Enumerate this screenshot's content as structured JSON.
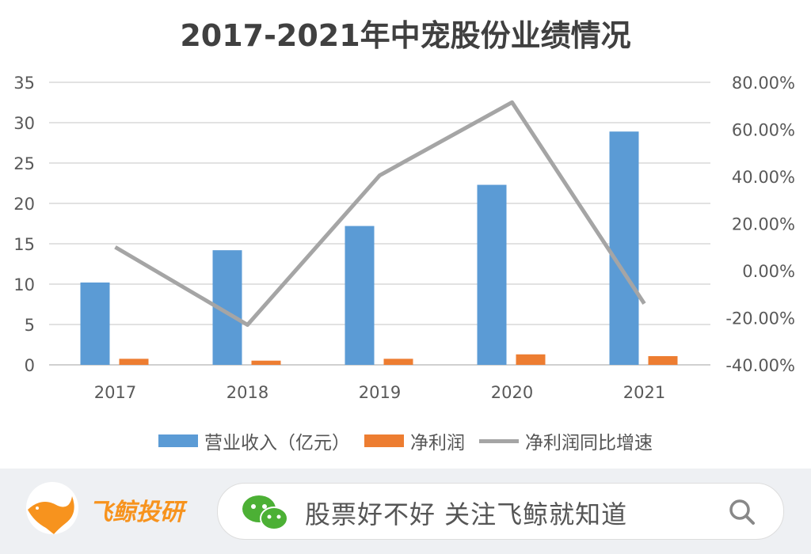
{
  "chart_data": {
    "type": "bar",
    "title": "2017-2021年中宠股份业绩情况",
    "categories": [
      "2017",
      "2018",
      "2019",
      "2020",
      "2021"
    ],
    "series": [
      {
        "name": "营业收入（亿元）",
        "type": "bar",
        "axis": "left",
        "color": "#5b9bd5",
        "values": [
          10.2,
          14.2,
          17.2,
          22.3,
          28.9
        ]
      },
      {
        "name": "净利润",
        "type": "bar",
        "axis": "left",
        "color": "#ed7d31",
        "values": [
          0.75,
          0.52,
          0.75,
          1.3,
          1.08
        ]
      },
      {
        "name": "净利润同比增速",
        "type": "line",
        "axis": "right",
        "color": "#a5a5a5",
        "values": [
          10.0,
          -23.0,
          40.5,
          71.5,
          -14.0
        ]
      }
    ],
    "left_axis": {
      "ylim": [
        0,
        35
      ],
      "ticks": [
        "0",
        "5",
        "10",
        "15",
        "20",
        "25",
        "30",
        "35"
      ]
    },
    "right_axis": {
      "ylim": [
        -40,
        80
      ],
      "ticks": [
        "-40.00%",
        "-20.00%",
        "0.00%",
        "20.00%",
        "40.00%",
        "60.00%",
        "80.00%"
      ]
    },
    "grid": true,
    "legend": "bottom"
  },
  "footer": {
    "brand": "飞鲸投研",
    "slogan": "股票好不好 关注飞鲸就知道",
    "icons": [
      "whale-logo-icon",
      "wechat-icon",
      "search-icon"
    ]
  }
}
